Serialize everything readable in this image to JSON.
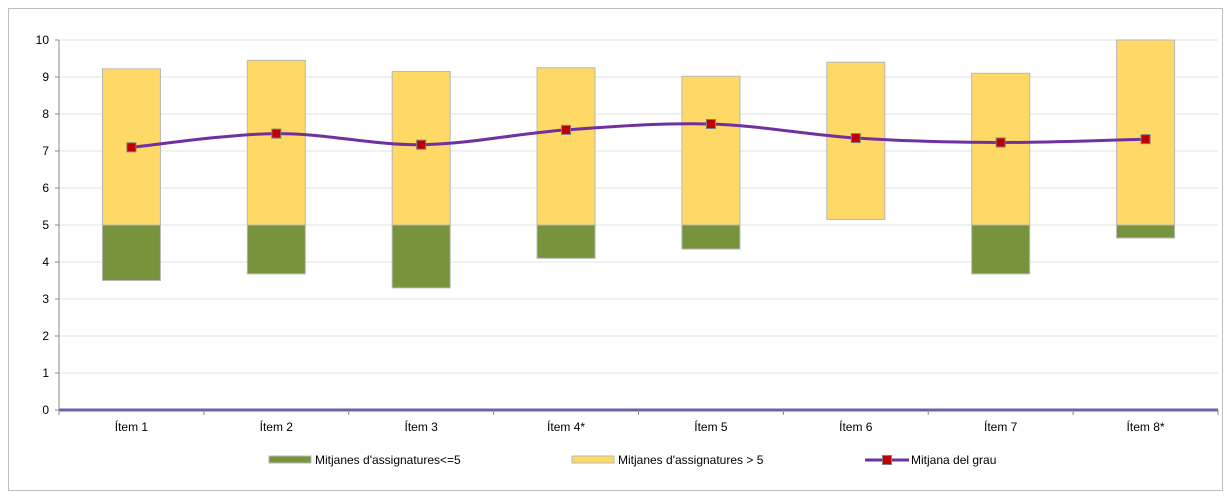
{
  "chart_data": {
    "type": "bar",
    "categories": [
      "Ítem 1",
      "Ítem 2",
      "Ítem 3",
      "Ítem 4*",
      "Ítem 5",
      "Ítem 6",
      "Ítem 7",
      "Ítem 8*"
    ],
    "ylim": [
      0,
      10
    ],
    "yticks": [
      "0",
      "1",
      "2",
      "3",
      "4",
      "5",
      "6",
      "7",
      "8",
      "9",
      "10"
    ],
    "grid": true,
    "legend_position": "bottom",
    "series": [
      {
        "name": "Mitjanes d'assignatures<=5",
        "kind": "floating-bar",
        "color": "#77933c",
        "low": [
          3.5,
          3.68,
          3.3,
          4.1,
          4.35,
          null,
          3.68,
          4.65
        ],
        "high": [
          5.0,
          5.0,
          5.0,
          5.0,
          5.0,
          null,
          5.0,
          5.0
        ]
      },
      {
        "name": "Mitjanes d'assignatures > 5",
        "kind": "floating-bar",
        "color": "#ffd966",
        "low": [
          5.0,
          5.0,
          5.0,
          5.0,
          5.0,
          5.15,
          5.0,
          5.0
        ],
        "high": [
          9.22,
          9.45,
          9.15,
          9.25,
          9.02,
          9.4,
          9.1,
          10.0
        ]
      },
      {
        "name": "Mitjana del grau",
        "kind": "line",
        "color": "#7030a0",
        "marker_color": "#c00000",
        "values": [
          7.1,
          7.47,
          7.17,
          7.57,
          7.73,
          7.35,
          7.23,
          7.32
        ]
      }
    ]
  }
}
